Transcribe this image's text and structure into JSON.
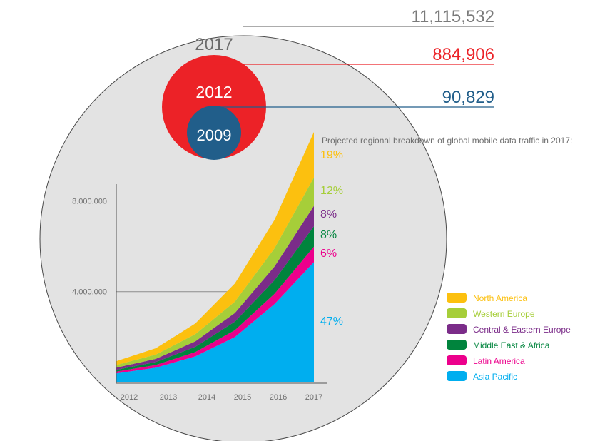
{
  "bubbles": {
    "outer": {
      "year": "2017",
      "value": "11,115,532",
      "color": "#e3e3e3",
      "text_color": "#6b6b6b",
      "line_color": "#7a7a7a"
    },
    "middle": {
      "year": "2012",
      "value": "884,906",
      "color": "#ec2227",
      "text_color": "#ffffff",
      "line_color": "#ec2227"
    },
    "inner": {
      "year": "2009",
      "value": "90,829",
      "color": "#215e8a",
      "text_color": "#ffffff",
      "line_color": "#215e8a"
    }
  },
  "chart_data": {
    "type": "area",
    "title": "Projected regional breakdown of global mobile data traffic in 2017:",
    "x": [
      "2012",
      "2013",
      "2014",
      "2015",
      "2016",
      "2017"
    ],
    "yticks": [
      {
        "value": 4000000,
        "label": "4.000.000"
      },
      {
        "value": 8000000,
        "label": "8.000.000"
      }
    ],
    "ylim": [
      0,
      11000000
    ],
    "stacked": true,
    "grid": true,
    "legend_position": "right",
    "series": [
      {
        "name": "Asia Pacific",
        "color": "#00aeef",
        "share_label": "47%",
        "values": [
          400000,
          650000,
          1150000,
          2000000,
          3450000,
          5300000
        ]
      },
      {
        "name": "Latin America",
        "color": "#ec008c",
        "share_label": "6%",
        "values": [
          80000,
          120000,
          190000,
          300000,
          450000,
          680000
        ]
      },
      {
        "name": "Middle East & Africa",
        "color": "#00843d",
        "share_label": "8%",
        "values": [
          80000,
          130000,
          230000,
          380000,
          600000,
          900000
        ]
      },
      {
        "name": "Central & Eastern Europe",
        "color": "#7b2c89",
        "share_label": "8%",
        "values": [
          90000,
          140000,
          240000,
          380000,
          600000,
          900000
        ]
      },
      {
        "name": "Western Europe",
        "color": "#a6ce39",
        "share_label": "12%",
        "values": [
          120000,
          190000,
          320000,
          500000,
          800000,
          1250000
        ]
      },
      {
        "name": "North America",
        "color": "#fcc00f",
        "share_label": "19%",
        "values": [
          170000,
          280000,
          470000,
          800000,
          1250000,
          2000000
        ]
      }
    ]
  }
}
